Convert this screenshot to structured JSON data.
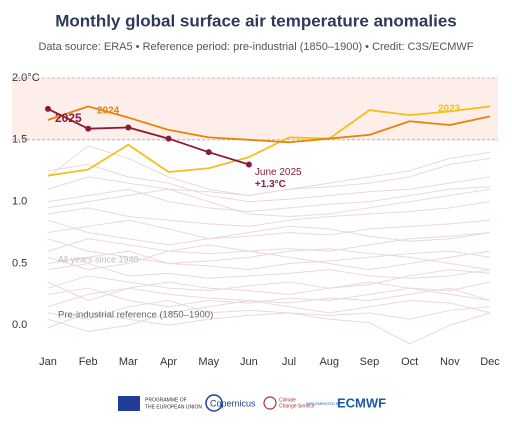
{
  "chart_data": {
    "type": "line",
    "title": "Monthly global surface air temperature anomalies",
    "subtitle": "Data source: ERA5 • Reference period: pre-industrial (1850–1900) • Credit: C3S/ECMWF",
    "categories": [
      "Jan",
      "Feb",
      "Mar",
      "Apr",
      "May",
      "Jun",
      "Jul",
      "Aug",
      "Sep",
      "Oct",
      "Nov",
      "Dec"
    ],
    "ylim": [
      -0.2,
      2.0
    ],
    "yticks": [
      {
        "value": 0,
        "label": "0.0"
      },
      0.5,
      {
        "value": 1,
        "label": "1.0"
      },
      1.5,
      {
        "value": 2,
        "label": "2.0°C"
      }
    ],
    "band": {
      "range": [
        1.5,
        2.0
      ],
      "color": "#fdeee9"
    },
    "background_lines": {
      "label": "All years since 1940",
      "color": "#ead9d9",
      "values": [
        [
          0.25,
          0.3,
          0.2,
          0.15,
          0.2,
          0.18,
          0.22,
          0.2,
          0.25,
          0.3,
          0.28,
          0.35
        ],
        [
          0.1,
          0.05,
          0.15,
          0.2,
          0.1,
          0.12,
          0.1,
          0.08,
          0.1,
          0.05,
          0.12,
          0.15
        ],
        [
          0.35,
          0.2,
          0.3,
          0.25,
          0.22,
          0.2,
          0.18,
          0.22,
          0.2,
          0.25,
          0.3,
          0.2
        ],
        [
          -0.02,
          0.1,
          0.05,
          0.0,
          0.05,
          0.08,
          0.1,
          0.05,
          0.02,
          -0.15,
          0.0,
          0.1
        ],
        [
          0.3,
          0.4,
          0.35,
          0.3,
          0.28,
          0.32,
          0.35,
          0.3,
          0.33,
          0.4,
          0.45,
          0.42
        ],
        [
          0.45,
          0.5,
          0.4,
          0.42,
          0.38,
          0.4,
          0.42,
          0.45,
          0.4,
          0.38,
          0.4,
          0.45
        ],
        [
          0.5,
          0.55,
          0.6,
          0.5,
          0.48,
          0.45,
          0.5,
          0.52,
          0.55,
          0.58,
          0.6,
          0.55
        ],
        [
          0.6,
          0.7,
          0.65,
          0.6,
          0.58,
          0.6,
          0.62,
          0.6,
          0.65,
          0.7,
          0.72,
          0.75
        ],
        [
          0.75,
          0.8,
          0.85,
          0.78,
          0.7,
          0.72,
          0.75,
          0.73,
          0.78,
          0.8,
          0.82,
          0.85
        ],
        [
          0.9,
          0.95,
          0.88,
          0.85,
          0.82,
          0.8,
          0.85,
          0.88,
          0.9,
          0.92,
          0.95,
          1.0
        ],
        [
          1.0,
          1.05,
          1.1,
          1.0,
          0.95,
          0.92,
          0.95,
          0.98,
          1.0,
          1.05,
          1.1,
          1.12
        ],
        [
          1.25,
          1.3,
          1.2,
          1.15,
          1.05,
          1.0,
          1.02,
          1.05,
          1.08,
          1.1,
          1.15,
          1.2
        ],
        [
          1.1,
          1.2,
          1.15,
          1.1,
          1.08,
          1.05,
          1.1,
          1.12,
          1.15,
          1.2,
          1.3,
          1.35
        ],
        [
          1.2,
          1.45,
          1.35,
          1.2,
          1.1,
          1.05,
          1.1,
          1.15,
          1.2,
          1.25,
          1.35,
          1.4
        ],
        [
          0.7,
          0.6,
          0.55,
          0.5,
          0.52,
          0.55,
          0.6,
          0.62,
          0.58,
          0.55,
          0.5,
          0.45
        ],
        [
          0.15,
          0.25,
          0.3,
          0.35,
          0.3,
          0.28,
          0.25,
          0.3,
          0.35,
          0.3,
          0.25,
          0.2
        ],
        [
          0.55,
          0.45,
          0.5,
          0.6,
          0.65,
          0.6,
          0.55,
          0.5,
          0.45,
          0.5,
          0.55,
          0.6
        ],
        [
          0.85,
          0.75,
          0.7,
          0.65,
          0.7,
          0.75,
          0.8,
          0.78,
          0.72,
          0.68,
          0.7,
          0.75
        ],
        [
          0.05,
          -0.05,
          0.0,
          0.1,
          0.15,
          0.2,
          0.15,
          0.1,
          0.15,
          0.2,
          0.18,
          0.1
        ],
        [
          0.95,
          1.0,
          1.05,
          1.1,
          1.0,
          0.9,
          0.88,
          0.9,
          0.95,
          1.0,
          1.05,
          1.1
        ]
      ]
    },
    "series": [
      {
        "name": "2023",
        "color": "#f2c01c",
        "values": [
          1.21,
          1.26,
          1.46,
          1.24,
          1.27,
          1.36,
          1.52,
          1.51,
          1.74,
          1.7,
          1.73,
          1.77
        ]
      },
      {
        "name": "2024",
        "color": "#e8820c",
        "values": [
          1.66,
          1.77,
          1.68,
          1.58,
          1.52,
          1.5,
          1.48,
          1.51,
          1.54,
          1.65,
          1.62,
          1.69
        ]
      },
      {
        "name": "2025",
        "color": "#8b1a3a",
        "values": [
          1.75,
          1.59,
          1.6,
          1.51,
          1.4,
          1.3,
          null,
          null,
          null,
          null,
          null,
          null
        ]
      }
    ],
    "annotations": {
      "latest": "June 2025",
      "latest_value": "+1.3°C",
      "preindustrial": "Pre-industrial reference (1850–1900)"
    }
  },
  "footer": {
    "eu": [
      "PROGRAMME OF",
      "THE EUROPEAN UNION"
    ],
    "copernicus": "Copernicus",
    "c3s": [
      "Climate",
      "Change Service"
    ],
    "implemented": "IMPLEMENTED BY",
    "ecmwf": "ECMWF"
  }
}
